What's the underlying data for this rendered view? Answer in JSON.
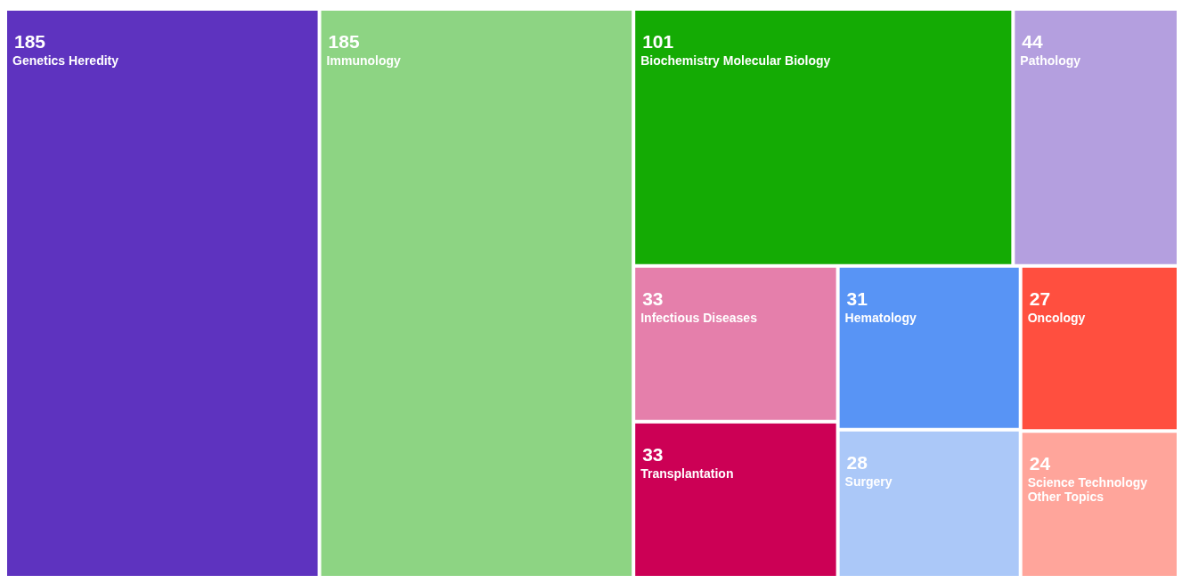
{
  "chart_data": {
    "type": "other",
    "categories": [
      "Genetics Heredity",
      "Immunology",
      "Biochemistry Molecular Biology",
      "Pathology",
      "Infectious Diseases",
      "Transplantation",
      "Hematology",
      "Surgery",
      "Oncology",
      "Science Technology Other Topics"
    ],
    "values": [
      185,
      185,
      101,
      44,
      33,
      33,
      31,
      28,
      27,
      24
    ],
    "colors": [
      "#5e33bf",
      "#8dd483",
      "#14ab04",
      "#b49fdf",
      "#e57fab",
      "#cc0055",
      "#5894f5",
      "#abc8f8",
      "#ff4f3f",
      "#ffa59b"
    ],
    "data_labels": true
  }
}
